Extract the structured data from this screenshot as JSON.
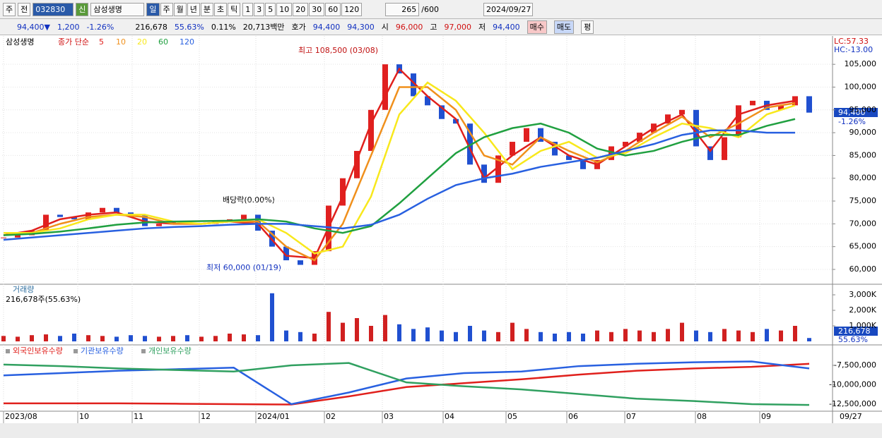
{
  "toolbar": {
    "market": "주",
    "mode": "전",
    "code": "032830",
    "tag": "신",
    "name": "삼성생명",
    "periods": [
      "일",
      "주",
      "월",
      "년",
      "분",
      "초",
      "틱"
    ],
    "counts": [
      "1",
      "3",
      "5",
      "10",
      "20",
      "30",
      "60",
      "120"
    ],
    "shown": "265",
    "max": "/600",
    "date": "2024/09/27"
  },
  "quote": {
    "price": "94,400▼",
    "change": "1,200",
    "rate": "-1.26%",
    "volume": "216,678",
    "vol_rate": "55.63%",
    "turnover": "0.11%",
    "amount": "20,713백만",
    "bid_label": "호가",
    "ask": "94,400",
    "bid": "94,300",
    "open_label": "시",
    "open": "96,000",
    "high_label": "고",
    "high": "97,000",
    "low_label": "저",
    "low": "94,400",
    "buy": "매수",
    "sell": "매도",
    "avg": "평"
  },
  "chart_data": [
    {
      "type": "candlestick",
      "title": "삼성생명",
      "legend_label": "종가 단순",
      "annotations": {
        "high": "최고 108,500 (03/08)",
        "low": "최저 60,000 (01/19)",
        "dividend": "배당락(0.00%)"
      },
      "lc": "LC:57.33",
      "hc": "HC:-13.00",
      "last_price": "94,400",
      "last_rate": "-1.26%",
      "values": [
        67000,
        67500,
        68500,
        72000,
        71500,
        71000,
        72500,
        73500,
        72500,
        72000,
        69500,
        70000,
        70500,
        70000,
        70000,
        70500,
        71000,
        72000,
        68500,
        65000,
        62000,
        61000,
        64000,
        74000,
        80000,
        86000,
        95000,
        105000,
        103000,
        98000,
        96000,
        93000,
        92000,
        83000,
        79000,
        85000,
        88000,
        91000,
        88000,
        85000,
        84000,
        82000,
        84000,
        87000,
        88000,
        90000,
        92000,
        94000,
        95000,
        87000,
        84000,
        89000,
        96000,
        97000,
        95000,
        96000,
        98000,
        94400
      ],
      "series": [
        {
          "name": "5",
          "color": "#e0201c",
          "values": [
            67500,
            68500,
            71000,
            72000,
            72500,
            70500,
            70000,
            70000,
            70500,
            70000,
            63000,
            62500,
            76000,
            92000,
            104000,
            98000,
            93000,
            80000,
            85000,
            89000,
            85000,
            83000,
            87000,
            91000,
            94000,
            86000,
            94000,
            96000,
            97000
          ]
        },
        {
          "name": "10",
          "color": "#f0901c",
          "values": [
            67500,
            68000,
            70000,
            71500,
            72000,
            71500,
            70000,
            70000,
            70500,
            70500,
            65000,
            62000,
            70000,
            85000,
            100000,
            100000,
            95000,
            85000,
            83000,
            89000,
            86000,
            83500,
            86000,
            90000,
            93500,
            89000,
            92000,
            95500,
            96500
          ]
        },
        {
          "name": "20",
          "color": "#f8e81c",
          "values": [
            68000,
            68000,
            69000,
            71000,
            72000,
            72000,
            70500,
            70000,
            70500,
            71000,
            68000,
            63500,
            65000,
            76000,
            94000,
            101000,
            97000,
            90000,
            82000,
            86000,
            88000,
            84500,
            85500,
            89000,
            92000,
            91000,
            89000,
            94000,
            96000
          ]
        },
        {
          "name": "60",
          "color": "#20a040",
          "values": [
            67500,
            67800,
            68300,
            69000,
            69800,
            70300,
            70500,
            70600,
            70700,
            71000,
            70500,
            69000,
            68000,
            69500,
            74500,
            80000,
            85500,
            89000,
            91000,
            92000,
            90000,
            86500,
            85000,
            86000,
            88000,
            89500,
            89500,
            91500,
            93000
          ]
        },
        {
          "name": "120",
          "color": "#2860e0",
          "values": [
            66500,
            67000,
            67500,
            68000,
            68500,
            69000,
            69300,
            69500,
            69800,
            70000,
            70000,
            69500,
            69000,
            69800,
            72000,
            75500,
            78500,
            80000,
            81000,
            82500,
            83500,
            84500,
            86000,
            87500,
            89500,
            90500,
            90500,
            90000,
            90000
          ]
        }
      ],
      "ylim": [
        56900,
        110600
      ],
      "yticks": [
        {
          "value": 60000,
          "label": "60,000"
        },
        {
          "value": 65000,
          "label": "65,000"
        },
        {
          "value": 70000,
          "label": "70,000"
        },
        {
          "value": 75000,
          "label": "75,000"
        },
        {
          "value": 80000,
          "label": "80,000"
        },
        {
          "value": 85000,
          "label": "85,000"
        },
        {
          "value": 90000,
          "label": "90,000"
        },
        {
          "value": 95000,
          "label": "95,000"
        },
        {
          "value": 100000,
          "label": "100,000"
        },
        {
          "value": 105000,
          "label": "105,000"
        }
      ],
      "grid": true
    },
    {
      "type": "bar",
      "title": "거래량",
      "subtitle": "216,678주(55.63%)",
      "last_value": "216,678",
      "last_rate": "55.63%",
      "values": [
        350000,
        300000,
        400000,
        450000,
        350000,
        500000,
        400000,
        350000,
        300000,
        400000,
        350000,
        300000,
        350000,
        400000,
        300000,
        350000,
        500000,
        450000,
        400000,
        3100000,
        700000,
        600000,
        500000,
        1900000,
        1200000,
        1500000,
        1000000,
        1700000,
        1100000,
        800000,
        900000,
        700000,
        600000,
        1000000,
        700000,
        600000,
        1200000,
        800000,
        600000,
        500000,
        600000,
        500000,
        700000,
        600000,
        800000,
        700000,
        600000,
        800000,
        1200000,
        700000,
        600000,
        800000,
        700000,
        600000,
        800000,
        700000,
        1000000,
        216678
      ],
      "ylim": [
        0,
        3545000
      ],
      "yticks": [
        {
          "value": 1000000,
          "label": "1,000K"
        },
        {
          "value": 2000000,
          "label": "2,000K"
        },
        {
          "value": 3000000,
          "label": "3,000K"
        }
      ]
    },
    {
      "type": "line",
      "series": [
        {
          "name": "외국인보유수량",
          "color": "#e0201c",
          "values": [
            -12400000,
            -12400000,
            -12400000,
            -12450000,
            -12500000,
            -12550000,
            -11500000,
            -10300000,
            -9800000,
            -9300000,
            -8700000,
            -8200000,
            -7900000,
            -7700000,
            -7300000
          ]
        },
        {
          "name": "기관보유수량",
          "color": "#2860e0",
          "values": [
            -8800000,
            -8500000,
            -8200000,
            -8000000,
            -7800000,
            -12500000,
            -11000000,
            -9200000,
            -8500000,
            -8300000,
            -7600000,
            -7300000,
            -7100000,
            -7000000,
            -7900000
          ]
        },
        {
          "name": "개인보유수량",
          "color": "#30a060",
          "values": [
            -7400000,
            -7600000,
            -7900000,
            -8100000,
            -8300000,
            -7500000,
            -7200000,
            -9700000,
            -10200000,
            -10600000,
            -11200000,
            -11800000,
            -12100000,
            -12500000,
            -12600000
          ]
        }
      ],
      "ylim": [
        -13320000,
        -5140000
      ],
      "yticks": [
        {
          "value": -7500000,
          "label": "-7,500,000"
        },
        {
          "value": -10000000,
          "label": "-10,000,000"
        },
        {
          "value": -12500000,
          "label": "-12,500,000"
        }
      ]
    }
  ],
  "xaxis": {
    "ticks": [
      {
        "value": 0,
        "label": "2023/08"
      },
      {
        "value": 5.25,
        "label": "10"
      },
      {
        "value": 9.1,
        "label": "11"
      },
      {
        "value": 13.85,
        "label": "12"
      },
      {
        "value": 17.85,
        "label": "2024/01"
      },
      {
        "value": 22.7,
        "label": "02"
      },
      {
        "value": 26.8,
        "label": "03"
      },
      {
        "value": 31.1,
        "label": "04"
      },
      {
        "value": 35.55,
        "label": "05"
      },
      {
        "value": 39.85,
        "label": "06"
      },
      {
        "value": 43.95,
        "label": "07"
      },
      {
        "value": 48.95,
        "label": "08"
      },
      {
        "value": 53.5,
        "label": "09"
      }
    ],
    "end_label": "09/27"
  }
}
